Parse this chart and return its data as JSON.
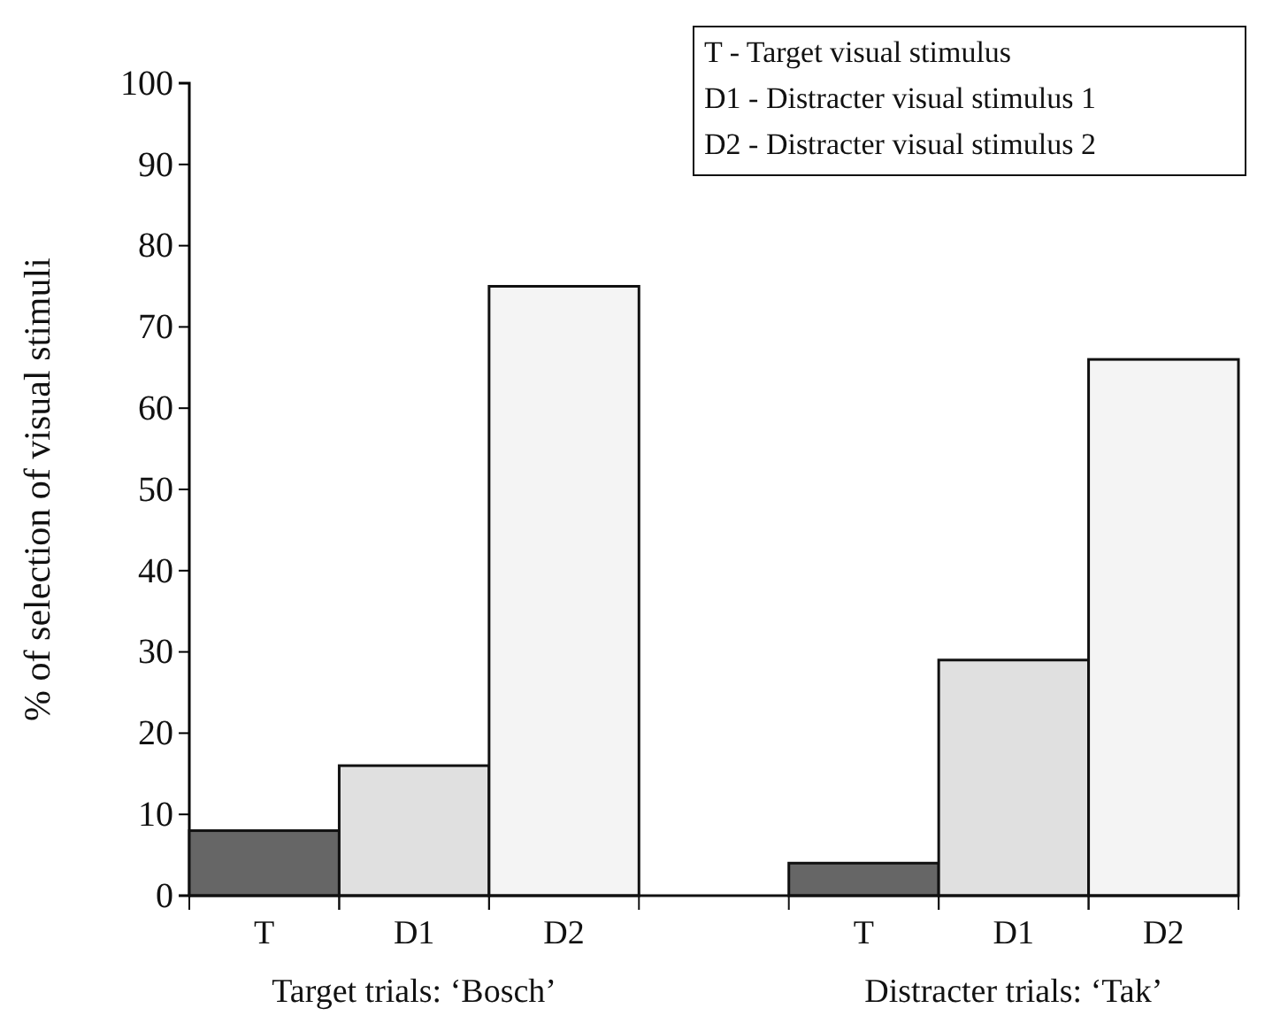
{
  "chart_data": {
    "type": "bar",
    "ylabel": "% of selection of visual stimuli",
    "categories": [
      "T",
      "D1",
      "D2",
      null,
      "T",
      "D1",
      "D2"
    ],
    "values": [
      8,
      16,
      75,
      null,
      4,
      29,
      66
    ],
    "colors": [
      "#666666",
      "#e0e0e0",
      "#f4f4f4",
      null,
      "#666666",
      "#e0e0e0",
      "#f4f4f4"
    ],
    "ylim": [
      0,
      100
    ],
    "yticks": [
      0,
      10,
      20,
      30,
      40,
      50,
      60,
      70,
      80,
      90,
      100
    ],
    "annotations": [
      "Target trials: ‘Bosch’",
      "Distracter trials: ‘Tak’",
      "T - Target visual stimulus",
      "D1 - Distracter visual stimulus 1",
      "D2 - Distracter visual stimulus 2"
    ]
  }
}
